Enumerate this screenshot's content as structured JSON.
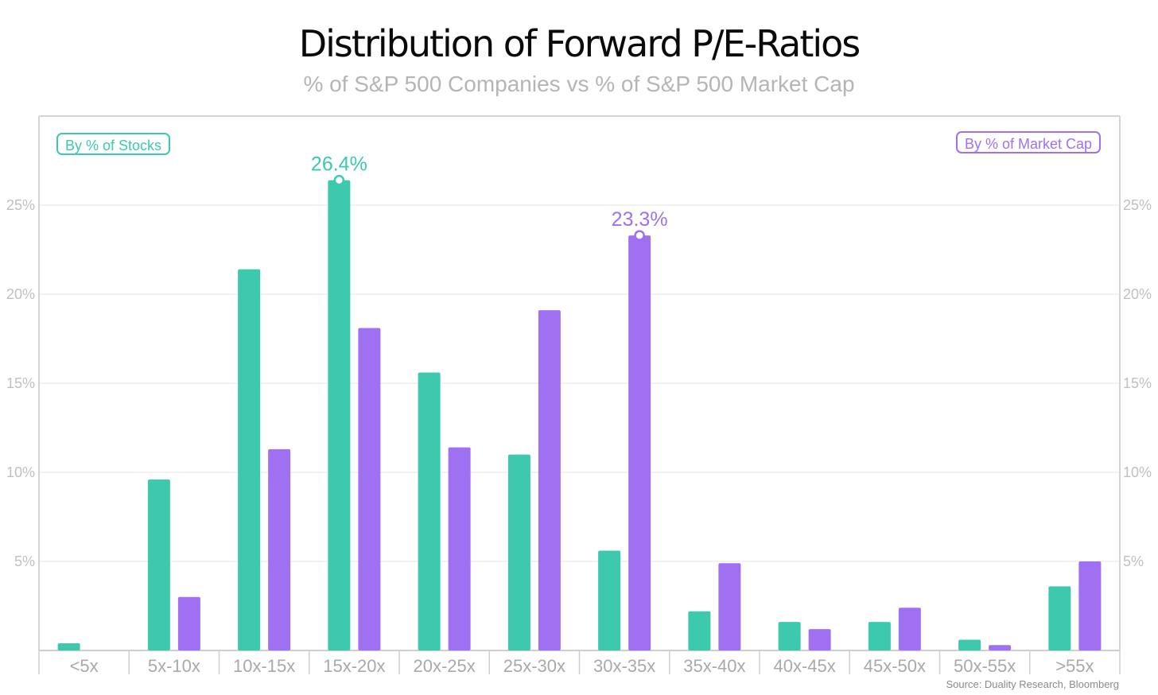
{
  "title": "Distribution of Forward P/E-Ratios",
  "subtitle": "% of S&P 500 Companies vs % of S&P 500 Market Cap",
  "source": "Source: Duality Research, Bloomberg",
  "legend": {
    "stocks": "By % of Stocks",
    "marketcap": "By % of Market Cap"
  },
  "colors": {
    "stocks": "#3cc9ae",
    "marketcap": "#a070f3",
    "grid": "#e6e6e6",
    "frame": "#d4d4d4"
  },
  "chart_data": {
    "type": "bar",
    "categories": [
      "<5x",
      "5x-10x",
      "10x-15x",
      "15x-20x",
      "20x-25x",
      "25x-30x",
      "30x-35x",
      "35x-40x",
      "40x-45x",
      "45x-50x",
      "50x-55x",
      ">55x"
    ],
    "series": [
      {
        "name": "By % of Stocks",
        "values": [
          0.4,
          9.6,
          21.4,
          26.4,
          15.6,
          11.0,
          5.6,
          2.2,
          1.6,
          1.6,
          0.6,
          3.6
        ]
      },
      {
        "name": "By % of Market Cap",
        "values": [
          0.0,
          3.0,
          11.3,
          18.1,
          11.4,
          19.1,
          23.3,
          4.9,
          1.2,
          2.4,
          0.3,
          5.0
        ]
      }
    ],
    "annotations": [
      {
        "series": 0,
        "category": "15x-20x",
        "text": "26.4%"
      },
      {
        "series": 1,
        "category": "30x-35x",
        "text": "23.3%"
      }
    ],
    "yticks": [
      "5%",
      "10%",
      "15%",
      "20%",
      "25%"
    ],
    "ylim": [
      0,
      30
    ],
    "grid": true,
    "legend_placement": "top-left and top-right"
  }
}
